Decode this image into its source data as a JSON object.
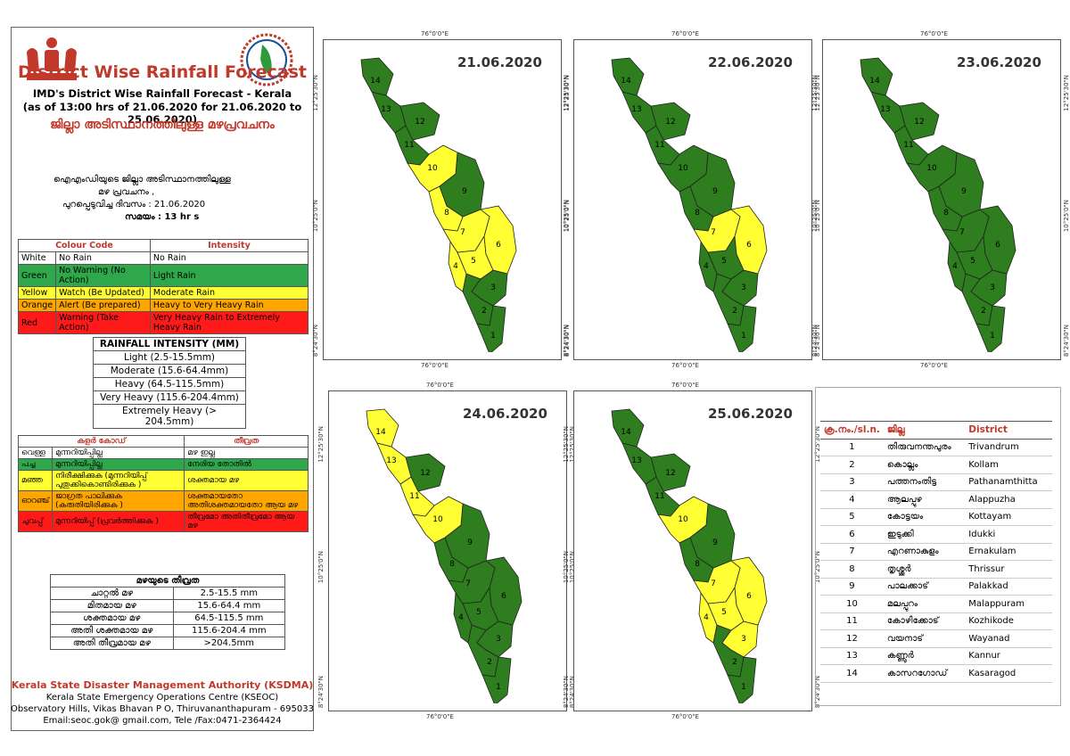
{
  "header": {
    "title": "District Wise Rainfall Forecast",
    "subtitle": "IMD's District Wise Rainfall Forecast - Kerala",
    "period": "(as of 13:00 hrs of 21.06.2020  for 21.06.2020  to 25.06.2020)",
    "title_ml": "ജില്ലാ അടിസ്ഥാനത്തിലുള്ള മഴപ്രവചനം",
    "desc_ml_1": "ഐഎംഡിയുടെ ജില്ലാ    അടിസ്ഥാനത്തിലുള്ള",
    "desc_ml_2": "മഴ പ്രവചനം   ,",
    "desc_ml_3": "പുറപ്പെടുവിച്ച      ദിവസം : 21.06.2020",
    "desc_ml_4": "സമയം : 13  hr s"
  },
  "colour_code": {
    "headers": [
      "Colour Code",
      "Intensity"
    ],
    "rows": [
      {
        "color": "White",
        "warning": "No Rain",
        "intensity": "No Rain",
        "bg": "#ffffff"
      },
      {
        "color": "Green",
        "warning": "No Warning (No Action)",
        "intensity": "Light Rain",
        "bg": "#2ea84a"
      },
      {
        "color": "Yellow",
        "warning": "Watch (Be Updated)",
        "intensity": "Moderate Rain",
        "bg": "#ffff33"
      },
      {
        "color": "Orange",
        "warning": "Alert (Be prepared)",
        "intensity": "Heavy to Very Heavy Rain",
        "bg": "#ffa500"
      },
      {
        "color": "Red",
        "warning": "Warning (Take Action)",
        "intensity": "Very Heavy Rain to Extremely Heavy Rain",
        "bg": "#ff1a1a"
      }
    ]
  },
  "rainfall_intensity": {
    "title": "RAINFALL INTENSITY (MM)",
    "rows": [
      "Light (2.5-15.5mm)",
      "Moderate (15.6-64.4mm)",
      "Heavy (64.5-115.5mm)",
      "Very Heavy (115.6-204.4mm)",
      "Extremely Heavy (> 204.5mm)"
    ]
  },
  "colour_code_ml": {
    "headers": [
      "കളർ കോഡ്",
      "തീവ്രത"
    ],
    "rows": [
      {
        "color": "വെള്ള",
        "warning": "മുന്നറിയിപ്പില്ല",
        "intensity": "മഴ ഇല്ല",
        "bg": "#ffffff"
      },
      {
        "color": "പച്ച",
        "warning": "മുന്നറിയിപ്പില്ല",
        "intensity": "നേരിയ തോതിൽ",
        "bg": "#2ea84a"
      },
      {
        "color": "മഞ്ഞ",
        "warning": "നിരീക്ഷിക്കുക (മുന്നറിയിപ്പ് പുതുക്കികൊണ്ടിരിക്കുക )",
        "intensity": "ശക്തമായ മഴ",
        "bg": "#ffff33"
      },
      {
        "color": "ഓറഞ്ച്",
        "warning": "ജാഗ്രത പാലിക്കുക (കരുതിയിരിക്കുക )",
        "intensity": "ശക്തമായതോ അതിശക്തമായതോ ആയ മഴ",
        "bg": "#ffa500"
      },
      {
        "color": "ചുവപ്പ്",
        "warning": "മുന്നറിയിപ്പ് (പ്രവർത്തിക്കുക )",
        "intensity": "തീവ്രമോ അതിതീവ്രമോ ആയ മഴ",
        "bg": "#ff1a1a"
      }
    ]
  },
  "rainfall_intensity_ml": {
    "title": "മഴയുടെ തീവ്രത",
    "rows": [
      {
        "label": "ചാറ്റൽ മഴ",
        "value": "2.5-15.5 mm"
      },
      {
        "label": "മിതമായ മഴ",
        "value": "15.6-64.4 mm"
      },
      {
        "label": "ശക്തമായ മഴ",
        "value": "64.5-115.5 mm"
      },
      {
        "label": "അതി ശക്തമായ മഴ",
        "value": "115.6-204.4 mm"
      },
      {
        "label": "അതി തീവ്രമായ മഴ",
        "value": ">204.5mm"
      }
    ]
  },
  "footer": {
    "org": "Kerala State Disaster Management Authority (KSDMA)",
    "line1": "Kerala State Emergency Operations Centre (KSEOC)",
    "line2": "Observatory Hills, Vikas Bhavan P O, Thiruvananthapuram - 695033",
    "line3": "Email:seoc.gok@ gmail.com, Tele /Fax:0471-2364424"
  },
  "axis_labels": {
    "lon": "76°0'0\"E",
    "lat1": "12°25'30\"N",
    "lat2": "10°25'0\"N",
    "lat3": "8°24'30\"N"
  },
  "colors": {
    "green": "#2e7d1e",
    "yellow": "#ffff33"
  },
  "maps": [
    {
      "date": "21.06.2020",
      "yellow": [
        4,
        5,
        6,
        7,
        8,
        10
      ]
    },
    {
      "date": "22.06.2020",
      "yellow": [
        6,
        7
      ]
    },
    {
      "date": "23.06.2020",
      "yellow": []
    },
    {
      "date": "24.06.2020",
      "yellow": [
        10,
        11,
        13,
        14
      ]
    },
    {
      "date": "25.06.2020",
      "yellow": [
        3,
        4,
        5,
        6,
        7,
        10
      ]
    }
  ],
  "districts": {
    "headers": [
      "ക്ര.നം./sl.n.",
      "ജില്ല",
      "District"
    ],
    "rows": [
      {
        "n": "1",
        "ml": "തിരുവനന്തപുരം",
        "en": "Trivandrum"
      },
      {
        "n": "2",
        "ml": "കൊല്ലം",
        "en": "Kollam"
      },
      {
        "n": "3",
        "ml": "പത്തനംതിട്ട",
        "en": "Pathanamthitta"
      },
      {
        "n": "4",
        "ml": "ആലപ്പുഴ",
        "en": "Alappuzha"
      },
      {
        "n": "5",
        "ml": "കോട്ടയം",
        "en": "Kottayam"
      },
      {
        "n": "6",
        "ml": "ഇടുക്കി",
        "en": "Idukki"
      },
      {
        "n": "7",
        "ml": "എറണാകുളം",
        "en": "Ernakulam"
      },
      {
        "n": "8",
        "ml": "തൃശ്ശൂർ",
        "en": "Thrissur"
      },
      {
        "n": "9",
        "ml": "പാലക്കാട്",
        "en": "Palakkad"
      },
      {
        "n": "10",
        "ml": "മലപ്പുറം",
        "en": "Malappuram"
      },
      {
        "n": "11",
        "ml": "കോഴിക്കോട്",
        "en": "Kozhikode"
      },
      {
        "n": "12",
        "ml": "വയനാട്",
        "en": "Wayanad"
      },
      {
        "n": "13",
        "ml": "കണ്ണൂർ",
        "en": "Kannur"
      },
      {
        "n": "14",
        "ml": "കാസറഗോഡ്",
        "en": "Kasaragod"
      }
    ]
  }
}
